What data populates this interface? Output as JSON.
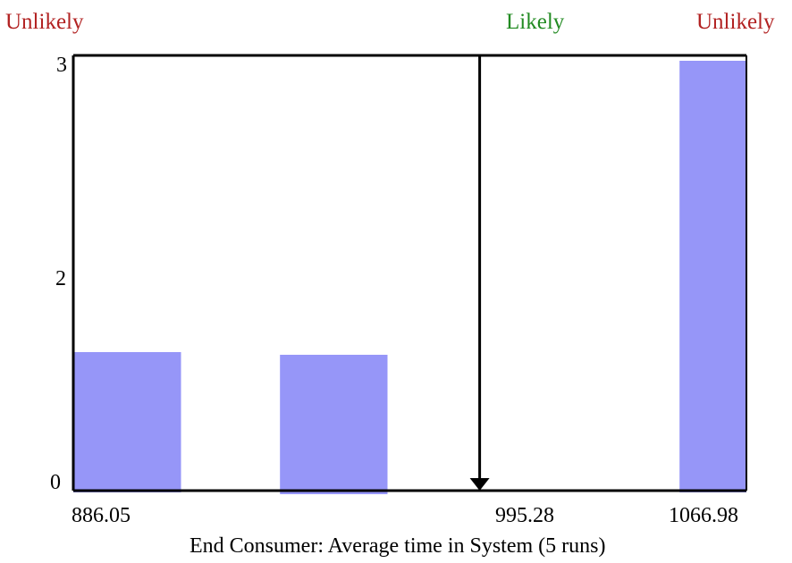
{
  "chart_data": {
    "type": "bar",
    "xlabel": "End Consumer: Average time in System (5 runs)",
    "ylabel": "",
    "x_tick_labels": [
      "886.05",
      "995.28",
      "1066.98"
    ],
    "x_ticks": [
      886.05,
      995.28,
      1066.98
    ],
    "y_tick_labels": [
      "0",
      "2",
      "3"
    ],
    "y_ticks": [
      0,
      2,
      3
    ],
    "ylim": [
      0,
      3
    ],
    "xlim": [
      886.05,
      1066.98
    ],
    "bars": [
      {
        "x0": 886.05,
        "x1": 915.0,
        "value": 1
      },
      {
        "x0": 941.6,
        "x1": 970.5,
        "value": 1
      },
      {
        "x0": 1049.0,
        "x1": 1066.98,
        "value": 3
      }
    ],
    "marker": {
      "x": 995.28,
      "label": "Likely"
    },
    "region_labels": [
      {
        "text": "Unlikely",
        "position": "top-left",
        "color": "#b22222"
      },
      {
        "text": "Likely",
        "position": "top-center",
        "color": "#228b22"
      },
      {
        "text": "Unlikely",
        "position": "top-right",
        "color": "#b22222"
      }
    ],
    "bar_color": "#9696f8",
    "grid": false
  }
}
